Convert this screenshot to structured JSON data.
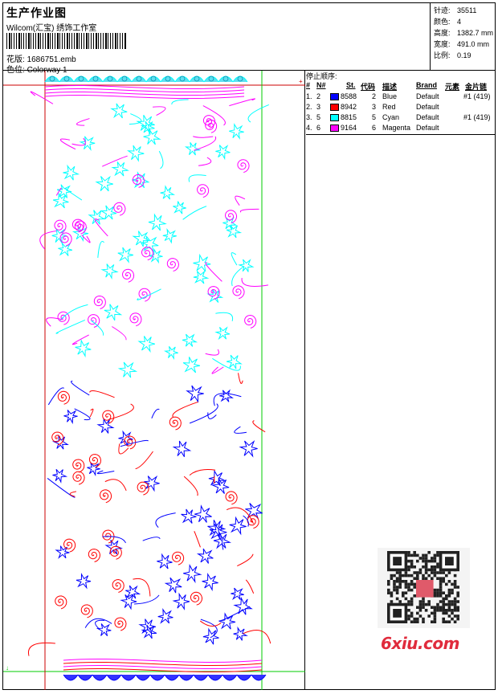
{
  "header": {
    "title": "生产作业图",
    "company": "Wilcom(汇宝) 绣饰工作室",
    "design_label": "花版:",
    "design_value": "1686751.emb",
    "colorway_label": "色位:",
    "colorway_value": "Colorway 1"
  },
  "stats": {
    "stitches_label": "针迹:",
    "stitches_value": "35511",
    "colors_label": "颜色:",
    "colors_value": "4",
    "height_label": "高度:",
    "height_value": "1382.7 mm",
    "width_label": "宽度:",
    "width_value": "491.0 mm",
    "scale_label": "比例:",
    "scale_value": "0.19"
  },
  "stop_sequence": {
    "title": "停止顺序:",
    "columns": {
      "index": "#",
      "n": "N#",
      "stitches": "St.",
      "code": "代码",
      "description": "描述",
      "brand": "Brand",
      "element": "元素",
      "sequin": "金片链"
    },
    "rows": [
      {
        "index": "1.",
        "n": "2",
        "stitches": "8588",
        "code": "2",
        "description": "Blue",
        "brand": "Default",
        "sequin": "#1 (419)",
        "color": "#0000ff"
      },
      {
        "index": "2.",
        "n": "3",
        "stitches": "8942",
        "code": "3",
        "description": "Red",
        "brand": "Default",
        "sequin": "",
        "color": "#ff0000"
      },
      {
        "index": "3.",
        "n": "5",
        "stitches": "8815",
        "code": "5",
        "description": "Cyan",
        "brand": "Default",
        "sequin": "#1 (419)",
        "color": "#00ffff"
      },
      {
        "index": "4.",
        "n": "6",
        "stitches": "9164",
        "code": "6",
        "description": "Magenta",
        "brand": "Default",
        "sequin": "",
        "color": "#ff00ff"
      }
    ]
  },
  "watermark": {
    "text": "6xiu.com",
    "color": "#e02b3c"
  },
  "colors": {
    "blue": "#0000ff",
    "red": "#ff0000",
    "cyan": "#00ffff",
    "magenta": "#ff00ff",
    "guide_red": "#cc0000",
    "guide_green": "#00cc00"
  }
}
